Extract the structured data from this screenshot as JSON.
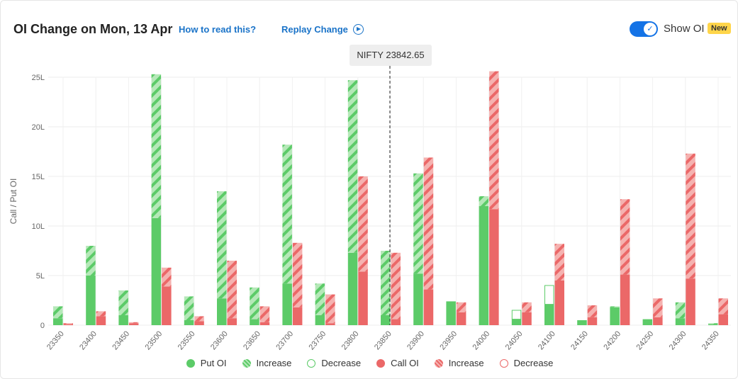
{
  "header": {
    "title": "OI Change on Mon, 13 Apr",
    "how_to_read": "How to read this?",
    "replay_change": "Replay Change",
    "show_oi": "Show OI",
    "new_badge": "New"
  },
  "spot_tooltip": "NIFTY 23842.65",
  "colors": {
    "put": "#5ccb68",
    "put_hatch_light": "#b5e8b8",
    "call": "#eb6868",
    "call_hatch_light": "#f5b2b0",
    "accent": "#1473e6"
  },
  "legend": [
    {
      "label": "Put OI",
      "kind": "put-solid"
    },
    {
      "label": "Increase",
      "kind": "put-increase"
    },
    {
      "label": "Decrease",
      "kind": "put-decrease"
    },
    {
      "label": "Call OI",
      "kind": "call-solid"
    },
    {
      "label": "Increase",
      "kind": "call-increase"
    },
    {
      "label": "Decrease",
      "kind": "call-decrease"
    }
  ],
  "chart_data": {
    "type": "bar",
    "ylabel": "Call / Put OI",
    "ylim": [
      0,
      25
    ],
    "yticks": [
      "0",
      "5L",
      "10L",
      "15L",
      "20L",
      "25L"
    ],
    "spot": 23842.65,
    "categories": [
      "23350",
      "23400",
      "23450",
      "23500",
      "23550",
      "23600",
      "23650",
      "23700",
      "23750",
      "23800",
      "23850",
      "23900",
      "23950",
      "24000",
      "24050",
      "24100",
      "24150",
      "24200",
      "24250",
      "24300",
      "24350"
    ],
    "series": [
      {
        "name": "Put OI",
        "base": [
          0.7,
          5.0,
          1.0,
          10.8,
          0.5,
          2.7,
          0.6,
          4.2,
          1.0,
          7.3,
          1.0,
          5.2,
          2.4,
          12.0,
          0.6,
          2.1,
          0.5,
          1.8,
          0.6,
          0.7,
          0.1
        ],
        "increase": [
          1.2,
          3.0,
          2.5,
          14.5,
          2.4,
          10.8,
          3.2,
          14.0,
          3.2,
          17.4,
          6.5,
          10.1,
          0,
          1.0,
          0,
          0,
          0,
          0.1,
          0,
          1.6,
          0.1
        ],
        "decrease": [
          0,
          0,
          0,
          0,
          0,
          0,
          0,
          0,
          0,
          0,
          0,
          0,
          0,
          0,
          0.9,
          1.9,
          0,
          0,
          0,
          0,
          0
        ]
      },
      {
        "name": "Call OI",
        "base": [
          0.1,
          0.9,
          0.2,
          3.9,
          0.4,
          0.7,
          0.3,
          1.8,
          0.2,
          5.4,
          0.6,
          3.6,
          1.3,
          11.7,
          1.3,
          4.5,
          0.8,
          5.1,
          0.8,
          4.7,
          1.1
        ],
        "increase": [
          0.1,
          0.5,
          0.1,
          1.9,
          0.5,
          5.8,
          1.6,
          6.5,
          2.9,
          9.6,
          6.7,
          13.3,
          1.0,
          13.9,
          1.0,
          3.7,
          1.2,
          7.6,
          1.9,
          12.6,
          1.6
        ],
        "decrease": [
          0,
          0,
          0,
          0,
          0,
          0,
          0,
          0,
          0,
          0,
          0,
          0,
          0,
          0,
          0,
          0,
          0,
          0,
          0,
          0,
          0
        ]
      }
    ]
  }
}
